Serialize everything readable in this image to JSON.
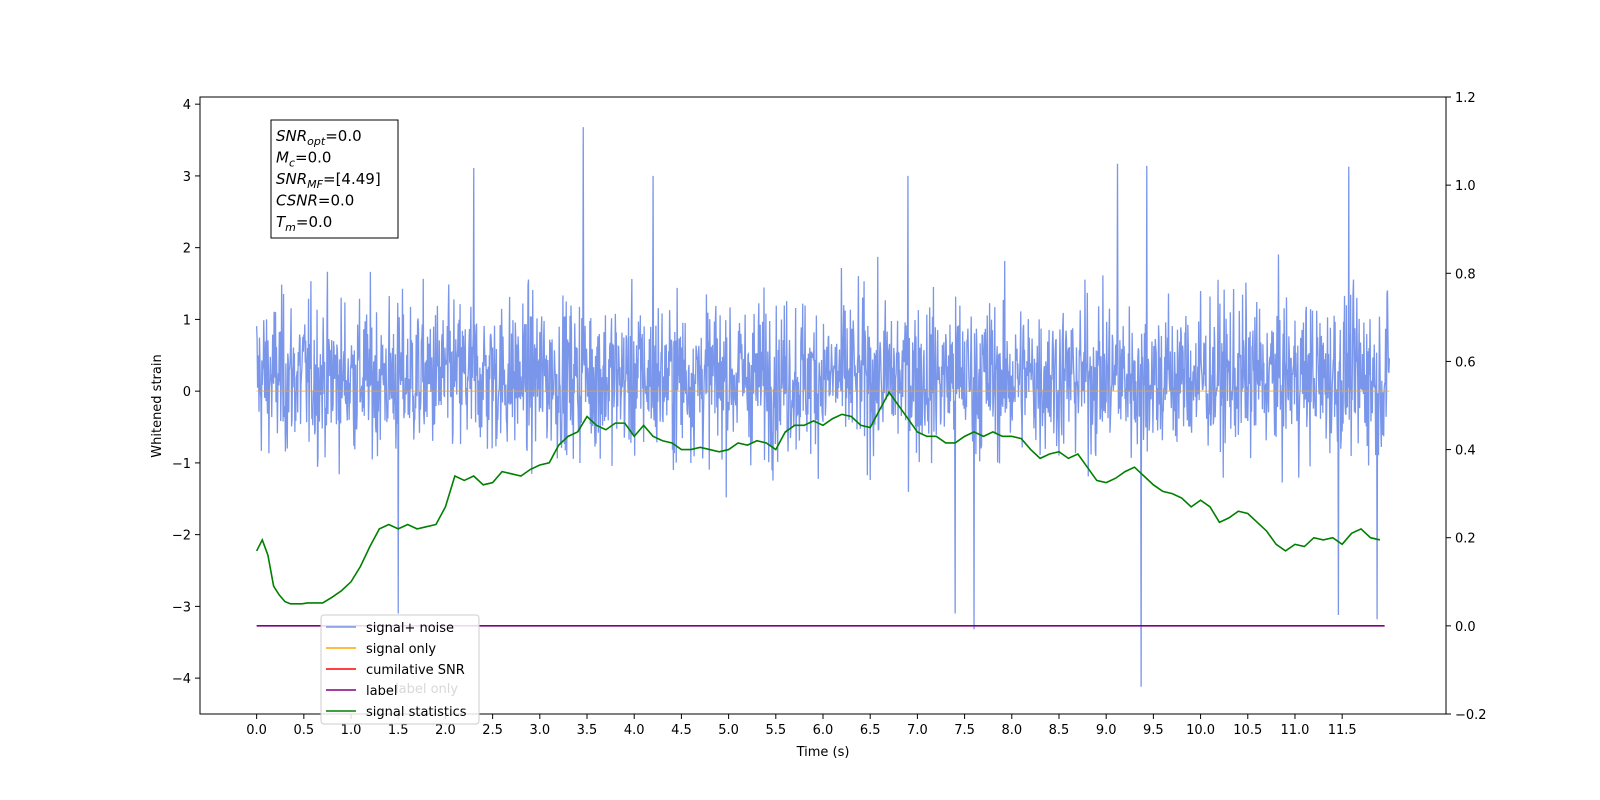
{
  "chart_data": {
    "type": "line",
    "xlabel": "Time (s)",
    "ylabel": "Whitened strain",
    "xlim": [
      -0.6,
      12.6
    ],
    "ylim": [
      -4.5,
      4.1
    ],
    "y2lim": [
      -0.2,
      1.2
    ],
    "x_ticks": [
      "0.0",
      "0.5",
      "1.0",
      "1.5",
      "2.0",
      "2.5",
      "3.0",
      "3.5",
      "4.0",
      "4.5",
      "5.0",
      "5.5",
      "6.0",
      "6.5",
      "7.0",
      "7.5",
      "8.0",
      "8.5",
      "9.0",
      "9.5",
      "10.0",
      "10.5",
      "11.0",
      "11.5"
    ],
    "y_ticks": [
      "−4",
      "−3",
      "−2",
      "−1",
      "0",
      "1",
      "2",
      "3",
      "4"
    ],
    "y2_ticks": [
      "−0.2",
      "0.0",
      "0.2",
      "0.4",
      "0.6",
      "0.8",
      "1.0",
      "1.2"
    ],
    "info_box": [
      {
        "base": "SNR",
        "sub": "opt",
        "value": "=0.0"
      },
      {
        "base": "M",
        "sub": "c",
        "value": "=0.0"
      },
      {
        "base": "SNR",
        "sub": "MF",
        "value": "=[4.49]"
      },
      {
        "base": "CSNR",
        "sub": "",
        "value": "=0.0"
      },
      {
        "base": "T",
        "sub": "m",
        "value": "=0.0"
      }
    ],
    "legend": [
      {
        "label": "signal+ noise",
        "color": "#4169e1"
      },
      {
        "label": "signal only",
        "color": "#ffa500"
      },
      {
        "label": "cumilative SNR",
        "color": "#ff0000"
      },
      {
        "label": "label",
        "color": "#800080"
      },
      {
        "label": "signal statistics",
        "color": "#008000"
      }
    ],
    "legend_hidden_text": [
      "label only"
    ],
    "legend_placement": "lower-left",
    "series": [
      {
        "name": "signal+ noise",
        "color": "#4169e1",
        "axis": "left",
        "kind": "noise",
        "x_range": [
          0.0,
          12.0
        ],
        "typical_range": [
          -1.8,
          2.2
        ],
        "spikes": [
          {
            "x": 3.46,
            "y": 3.68
          },
          {
            "x": 9.37,
            "y": -4.12
          },
          {
            "x": 7.6,
            "y": -3.32
          },
          {
            "x": 1.5,
            "y": -3.1
          },
          {
            "x": 9.12,
            "y": 3.17
          },
          {
            "x": 11.46,
            "y": -3.12
          },
          {
            "x": 11.87,
            "y": -3.18
          },
          {
            "x": 2.3,
            "y": 3.11
          },
          {
            "x": 11.57,
            "y": 3.13
          },
          {
            "x": 9.43,
            "y": 3.14
          },
          {
            "x": 4.2,
            "y": 3.0
          },
          {
            "x": 6.9,
            "y": 3.0
          },
          {
            "x": 7.4,
            "y": -3.1
          }
        ]
      },
      {
        "name": "signal only",
        "color": "#ffa500",
        "axis": "left",
        "x": [
          0.0,
          12.0
        ],
        "y": [
          0.0,
          0.0
        ]
      },
      {
        "name": "label",
        "color": "#800080",
        "axis": "right",
        "x": [
          0.0,
          11.95
        ],
        "y": [
          0.0,
          0.0
        ]
      },
      {
        "name": "signal statistics",
        "color": "#008000",
        "axis": "right",
        "x": [
          0.0,
          0.06,
          0.12,
          0.18,
          0.24,
          0.3,
          0.36,
          0.42,
          0.48,
          0.54,
          0.6,
          0.7,
          0.8,
          0.9,
          1.0,
          1.1,
          1.2,
          1.3,
          1.4,
          1.5,
          1.6,
          1.7,
          1.8,
          1.9,
          2.0,
          2.1,
          2.2,
          2.3,
          2.4,
          2.5,
          2.6,
          2.7,
          2.8,
          2.9,
          3.0,
          3.1,
          3.2,
          3.3,
          3.4,
          3.5,
          3.6,
          3.7,
          3.8,
          3.9,
          4.0,
          4.1,
          4.2,
          4.3,
          4.4,
          4.5,
          4.6,
          4.7,
          4.8,
          4.9,
          5.0,
          5.1,
          5.2,
          5.3,
          5.4,
          5.5,
          5.6,
          5.7,
          5.8,
          5.9,
          6.0,
          6.1,
          6.2,
          6.3,
          6.4,
          6.5,
          6.6,
          6.7,
          6.8,
          6.9,
          7.0,
          7.1,
          7.2,
          7.3,
          7.4,
          7.5,
          7.6,
          7.7,
          7.8,
          7.9,
          8.0,
          8.1,
          8.2,
          8.3,
          8.4,
          8.5,
          8.6,
          8.7,
          8.8,
          8.9,
          9.0,
          9.1,
          9.2,
          9.3,
          9.4,
          9.5,
          9.6,
          9.7,
          9.8,
          9.9,
          10.0,
          10.1,
          10.2,
          10.3,
          10.4,
          10.5,
          10.6,
          10.7,
          10.8,
          10.9,
          11.0,
          11.1,
          11.2,
          11.3,
          11.4,
          11.5,
          11.6,
          11.7,
          11.8,
          11.9
        ],
        "y": [
          0.17,
          0.195,
          0.16,
          0.09,
          0.07,
          0.055,
          0.05,
          0.05,
          0.05,
          0.052,
          0.052,
          0.052,
          0.065,
          0.08,
          0.1,
          0.135,
          0.18,
          0.22,
          0.23,
          0.22,
          0.23,
          0.22,
          0.225,
          0.23,
          0.27,
          0.34,
          0.33,
          0.34,
          0.32,
          0.325,
          0.35,
          0.345,
          0.34,
          0.355,
          0.365,
          0.37,
          0.41,
          0.43,
          0.44,
          0.475,
          0.455,
          0.445,
          0.46,
          0.46,
          0.43,
          0.455,
          0.43,
          0.42,
          0.415,
          0.4,
          0.4,
          0.405,
          0.4,
          0.395,
          0.4,
          0.415,
          0.41,
          0.42,
          0.415,
          0.4,
          0.44,
          0.455,
          0.455,
          0.465,
          0.455,
          0.47,
          0.48,
          0.475,
          0.455,
          0.45,
          0.49,
          0.53,
          0.5,
          0.47,
          0.44,
          0.43,
          0.43,
          0.415,
          0.415,
          0.43,
          0.44,
          0.43,
          0.44,
          0.43,
          0.43,
          0.425,
          0.4,
          0.38,
          0.39,
          0.395,
          0.38,
          0.39,
          0.36,
          0.33,
          0.325,
          0.335,
          0.35,
          0.36,
          0.34,
          0.32,
          0.305,
          0.3,
          0.29,
          0.27,
          0.285,
          0.27,
          0.235,
          0.245,
          0.26,
          0.255,
          0.235,
          0.215,
          0.185,
          0.17,
          0.185,
          0.18,
          0.2,
          0.195,
          0.2,
          0.185,
          0.21,
          0.22,
          0.2,
          0.195
        ]
      }
    ]
  }
}
